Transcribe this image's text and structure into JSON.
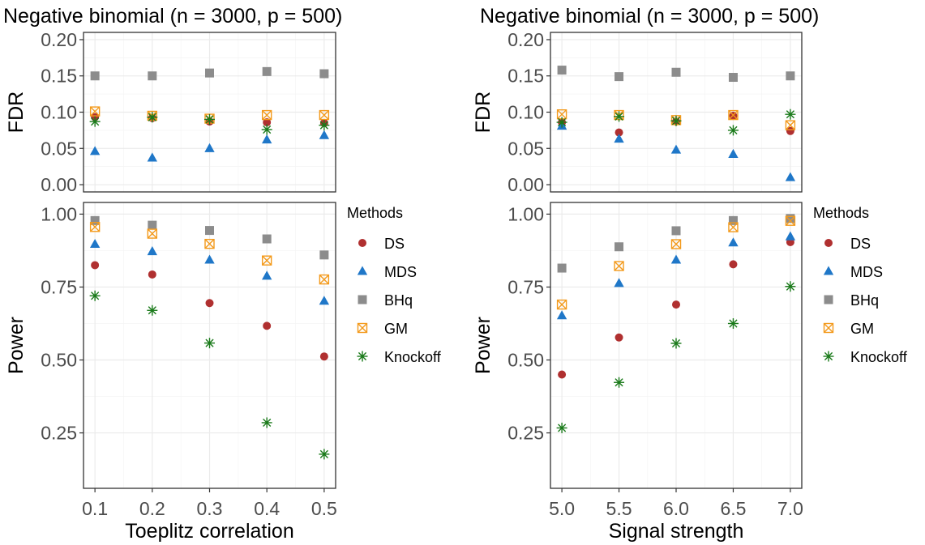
{
  "colors": {
    "DS": "#B03030",
    "MDS": "#1F77C8",
    "BHq": "#8C8C8C",
    "GM": "#F39A1C",
    "Knockoff": "#1A7A1A"
  },
  "legend": {
    "title": "Methods",
    "items": [
      "DS",
      "MDS",
      "BHq",
      "GM",
      "Knockoff"
    ]
  },
  "chart_data": [
    {
      "type": "scatter",
      "title": "Negative binomial (n = 3000, p = 500)",
      "xlabel": "Toeplitz correlation",
      "x": [
        0.1,
        0.2,
        0.3,
        0.4,
        0.5
      ],
      "x_tick_labels": [
        "0.1",
        "0.2",
        "0.3",
        "0.4",
        "0.5"
      ],
      "panels": [
        {
          "ylabel": "FDR",
          "ylim": [
            -0.01,
            0.21
          ],
          "y_ticks": [
            0.0,
            0.05,
            0.1,
            0.15,
            0.2
          ],
          "y_tick_labels": [
            "0.00",
            "0.05",
            "0.10",
            "0.15",
            "0.20"
          ],
          "series": [
            {
              "name": "DS",
              "values": [
                0.093,
                0.092,
                0.087,
                0.086,
                0.085
              ]
            },
            {
              "name": "MDS",
              "values": [
                0.046,
                0.037,
                0.05,
                0.062,
                0.068
              ]
            },
            {
              "name": "BHq",
              "values": [
                0.15,
                0.15,
                0.154,
                0.156,
                0.153
              ]
            },
            {
              "name": "GM",
              "values": [
                0.101,
                0.095,
                0.091,
                0.096,
                0.096
              ]
            },
            {
              "name": "Knockoff",
              "values": [
                0.087,
                0.093,
                0.09,
                0.076,
                0.082
              ]
            }
          ]
        },
        {
          "ylabel": "Power",
          "ylim": [
            0.06,
            1.04
          ],
          "y_ticks": [
            0.25,
            0.5,
            0.75,
            1.0
          ],
          "y_tick_labels": [
            "0.25",
            "0.50",
            "0.75",
            "1.00"
          ],
          "series": [
            {
              "name": "DS",
              "values": [
                0.825,
                0.793,
                0.695,
                0.617,
                0.512
              ]
            },
            {
              "name": "MDS",
              "values": [
                0.897,
                0.872,
                0.843,
                0.788,
                0.702
              ]
            },
            {
              "name": "BHq",
              "values": [
                0.978,
                0.962,
                0.944,
                0.915,
                0.86
              ]
            },
            {
              "name": "GM",
              "values": [
                0.956,
                0.933,
                0.898,
                0.841,
                0.776
              ]
            },
            {
              "name": "Knockoff",
              "values": [
                0.72,
                0.67,
                0.558,
                0.285,
                0.177
              ]
            }
          ]
        }
      ]
    },
    {
      "type": "scatter",
      "title": "Negative binomial (n = 3000, p = 500)",
      "xlabel": "Signal strength",
      "x": [
        5.0,
        5.5,
        6.0,
        6.5,
        7.0
      ],
      "x_tick_labels": [
        "5.0",
        "5.5",
        "6.0",
        "6.5",
        "7.0"
      ],
      "panels": [
        {
          "ylabel": "FDR",
          "ylim": [
            -0.01,
            0.21
          ],
          "y_ticks": [
            0.0,
            0.05,
            0.1,
            0.15,
            0.2
          ],
          "y_tick_labels": [
            "0.00",
            "0.05",
            "0.10",
            "0.15",
            "0.20"
          ],
          "series": [
            {
              "name": "DS",
              "values": [
                0.086,
                0.072,
                0.087,
                0.095,
                0.074
              ]
            },
            {
              "name": "MDS",
              "values": [
                0.081,
                0.063,
                0.048,
                0.042,
                0.01
              ]
            },
            {
              "name": "BHq",
              "values": [
                0.158,
                0.149,
                0.155,
                0.148,
                0.15
              ]
            },
            {
              "name": "GM",
              "values": [
                0.097,
                0.096,
                0.089,
                0.096,
                0.082
              ]
            },
            {
              "name": "Knockoff",
              "values": [
                0.086,
                0.094,
                0.088,
                0.075,
                0.097
              ]
            }
          ]
        },
        {
          "ylabel": "Power",
          "ylim": [
            0.06,
            1.04
          ],
          "y_ticks": [
            0.25,
            0.5,
            0.75,
            1.0
          ],
          "y_tick_labels": [
            "0.25",
            "0.50",
            "0.75",
            "1.00"
          ],
          "series": [
            {
              "name": "DS",
              "values": [
                0.45,
                0.577,
                0.69,
                0.828,
                0.904
              ]
            },
            {
              "name": "MDS",
              "values": [
                0.652,
                0.763,
                0.843,
                0.902,
                0.923
              ]
            },
            {
              "name": "BHq",
              "values": [
                0.815,
                0.888,
                0.943,
                0.978,
                0.985
              ]
            },
            {
              "name": "GM",
              "values": [
                0.69,
                0.822,
                0.897,
                0.955,
                0.977
              ]
            },
            {
              "name": "Knockoff",
              "values": [
                0.267,
                0.423,
                0.557,
                0.625,
                0.752
              ]
            }
          ]
        }
      ]
    }
  ]
}
